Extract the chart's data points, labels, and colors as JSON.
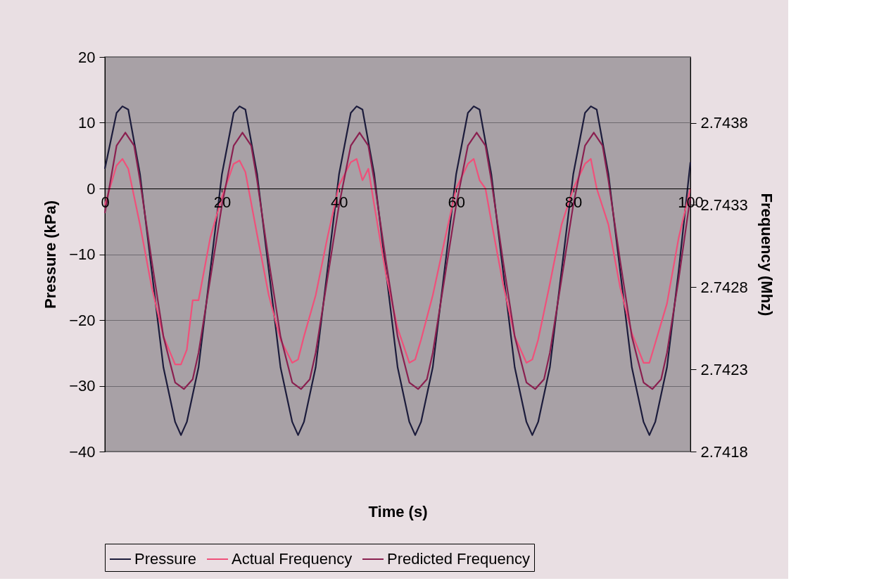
{
  "chart_data": {
    "type": "line",
    "xlabel": "Time (s)",
    "ylabel": "Pressure (kPa)",
    "y2label": "Frequency (Mhz)",
    "xlim": [
      0,
      100
    ],
    "xticks": [
      0,
      20,
      40,
      60,
      80,
      100
    ],
    "ylim": [
      -40,
      20
    ],
    "yticks": [
      -40,
      -30,
      -20,
      -10,
      0,
      10,
      20
    ],
    "y2lim": [
      2.7418,
      2.7442
    ],
    "y2ticks": [
      2.7418,
      2.7423,
      2.7428,
      2.7433,
      2.7438
    ],
    "grid": "y",
    "legend": "bottom",
    "line_style": "solid",
    "marker": "none",
    "series": [
      {
        "name": "Pressure",
        "color": "#1c1c3c",
        "x": [
          0,
          2,
          3,
          4,
          6,
          8,
          10,
          12,
          13,
          14,
          16,
          18,
          20,
          22,
          23,
          24,
          26,
          28,
          30,
          32,
          33,
          34,
          36,
          38,
          40,
          42,
          43,
          44,
          46,
          48,
          50,
          52,
          53,
          54,
          56,
          58,
          60,
          62,
          63,
          64,
          66,
          68,
          70,
          72,
          73,
          74,
          76,
          78,
          80,
          82,
          83,
          84,
          86,
          88,
          90,
          92,
          93,
          94,
          96,
          98,
          100
        ],
        "values": [
          3,
          11.5,
          12.5,
          12,
          2.2,
          -12.5,
          -27.2,
          -35.5,
          -37.5,
          -35.5,
          -27.2,
          -12.5,
          2.2,
          11.5,
          12.5,
          12,
          2.2,
          -12.5,
          -27.2,
          -35.5,
          -37.5,
          -35.5,
          -27.2,
          -12.5,
          2.2,
          11.5,
          12.5,
          12,
          2.2,
          -12.5,
          -27.2,
          -35.5,
          -37.5,
          -35.5,
          -27.2,
          -12.5,
          2.2,
          11.5,
          12.5,
          12,
          2.2,
          -12.5,
          -27.2,
          -35.5,
          -37.5,
          -35.5,
          -27.2,
          -12.5,
          2.2,
          11.5,
          12.5,
          12,
          2.2,
          -12.5,
          -27.2,
          -35.5,
          -37.5,
          -35.5,
          -27.2,
          -12.5,
          4
        ]
      },
      {
        "name": "Actual Frequency",
        "color": "#f0507a",
        "axis": "y2",
        "x": [
          0,
          2,
          3,
          4,
          6,
          8,
          10,
          12,
          13,
          14,
          15,
          16,
          18,
          20,
          22,
          23,
          24,
          26,
          28,
          30,
          32,
          33,
          34,
          36,
          38,
          40,
          42,
          43,
          44,
          45,
          46,
          48,
          50,
          52,
          53,
          54,
          56,
          58,
          60,
          62,
          63,
          64,
          65,
          66,
          68,
          70,
          72,
          73,
          74,
          76,
          78,
          80,
          82,
          83,
          84,
          86,
          88,
          90,
          92,
          93,
          94,
          96,
          98,
          100
        ],
        "values": [
          2.7433,
          2.74354,
          2.74358,
          2.74352,
          2.74318,
          2.7428,
          2.7425,
          2.74233,
          2.74233,
          2.74242,
          2.74272,
          2.74272,
          2.7431,
          2.74335,
          2.74355,
          2.74357,
          2.7435,
          2.74312,
          2.74275,
          2.74248,
          2.74234,
          2.74236,
          2.7425,
          2.74275,
          2.7431,
          2.74342,
          2.74356,
          2.74358,
          2.74345,
          2.74352,
          2.7433,
          2.74288,
          2.74255,
          2.74234,
          2.74236,
          2.74248,
          2.74275,
          2.74308,
          2.7434,
          2.74355,
          2.74358,
          2.74345,
          2.7434,
          2.7432,
          2.74282,
          2.7425,
          2.74234,
          2.74236,
          2.74248,
          2.74282,
          2.74318,
          2.7434,
          2.74355,
          2.74358,
          2.7434,
          2.74318,
          2.7428,
          2.74252,
          2.74234,
          2.74234,
          2.74246,
          2.7427,
          2.7431,
          2.7434
        ]
      },
      {
        "name": "Predicted Frequency",
        "color": "#8a2050",
        "axis": "y2",
        "x": [
          0,
          2,
          3.5,
          5,
          6,
          8,
          10,
          12,
          13.5,
          15,
          16,
          18,
          20,
          22,
          23.5,
          25,
          26,
          28,
          30,
          32,
          33.5,
          35,
          36,
          38,
          40,
          42,
          43.5,
          45,
          46,
          48,
          50,
          52,
          53.5,
          55,
          56,
          58,
          60,
          62,
          63.5,
          65,
          66,
          68,
          70,
          72,
          73.5,
          75,
          76,
          78,
          80,
          82,
          83.5,
          85,
          86,
          88,
          90,
          92,
          93.5,
          95,
          96,
          98,
          100
        ],
        "values": [
          2.74325,
          2.74366,
          2.74374,
          2.74366,
          2.74345,
          2.74296,
          2.7425,
          2.74222,
          2.74218,
          2.74224,
          2.7424,
          2.74285,
          2.7433,
          2.74366,
          2.74374,
          2.74366,
          2.74345,
          2.74296,
          2.7425,
          2.74222,
          2.74218,
          2.74224,
          2.7424,
          2.74285,
          2.7433,
          2.74366,
          2.74374,
          2.74366,
          2.74345,
          2.74296,
          2.7425,
          2.74222,
          2.74218,
          2.74224,
          2.7424,
          2.74285,
          2.7433,
          2.74366,
          2.74374,
          2.74366,
          2.74345,
          2.74296,
          2.7425,
          2.74222,
          2.74218,
          2.74224,
          2.7424,
          2.74285,
          2.7433,
          2.74366,
          2.74374,
          2.74366,
          2.74345,
          2.74296,
          2.7425,
          2.74222,
          2.74218,
          2.74224,
          2.7424,
          2.74285,
          2.74335
        ]
      }
    ]
  }
}
